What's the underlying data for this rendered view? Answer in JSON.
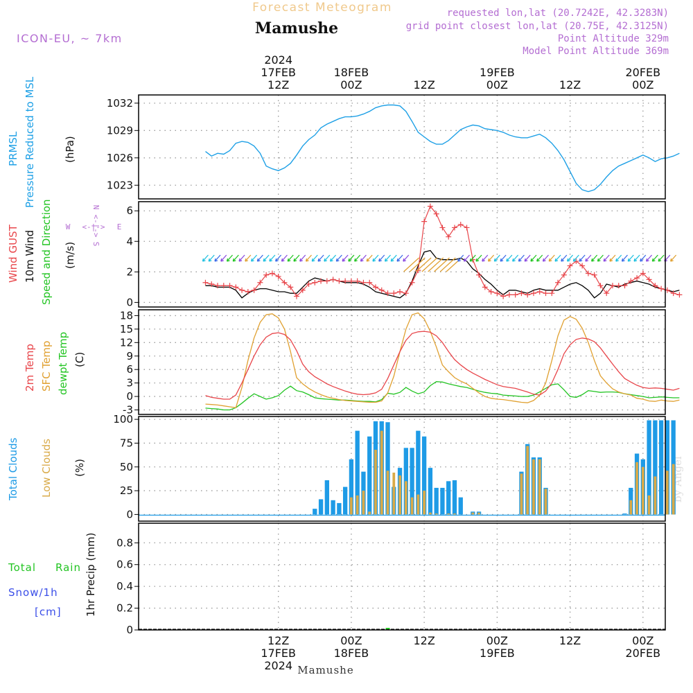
{
  "header": {
    "product_title": "Forecast Meteogram",
    "location": "Mamushe",
    "model": "ICON-EU, ~ 7km",
    "requested": "requested lon,lat (20.7242E, 42.3283N)",
    "gridpoint": "grid point closest lon,lat (20.75E, 42.3125N)",
    "point_altitude": "Point Altitude 329m",
    "model_altitude": "Model Point Altitude 369m"
  },
  "time_axis": {
    "top_labels": [
      {
        "hour": 12,
        "l1": "2024",
        "l2": "17FEB",
        "l3": "12Z"
      },
      {
        "hour": 24,
        "l2": "18FEB",
        "l3": "00Z"
      },
      {
        "hour": 36,
        "l3": "12Z"
      },
      {
        "hour": 48,
        "l2": "19FEB",
        "l3": "00Z"
      },
      {
        "hour": 60,
        "l3": "12Z"
      },
      {
        "hour": 72,
        "l2": "20FEB",
        "l3": "00Z"
      }
    ],
    "bottom_labels": [
      {
        "hour": 12,
        "l1": "12Z",
        "l2": "17FEB",
        "l3": "2024"
      },
      {
        "hour": 24,
        "l1": "00Z",
        "l2": "18FEB"
      },
      {
        "hour": 36,
        "l1": "12Z"
      },
      {
        "hour": 48,
        "l1": "00Z",
        "l2": "19FEB"
      },
      {
        "hour": 60,
        "l1": "12Z"
      },
      {
        "hour": 72,
        "l1": "00Z",
        "l2": "20FEB"
      }
    ],
    "bottom_caption": "Mamushe"
  },
  "panels": {
    "pressure": {
      "labels": [
        "PRMSL",
        "Pressure Reduced to MSL",
        "(hPa)"
      ],
      "yticks": [
        1023,
        1026,
        1029,
        1032
      ]
    },
    "wind": {
      "labels": [
        "Wind GUST",
        "10m Wind",
        "Speed and Direction",
        "(m/s)"
      ],
      "compass": {
        "n": "N",
        "s": "S",
        "w": "W",
        "e": "E",
        "arrow": "<-|->"
      },
      "yticks": [
        0,
        2,
        4,
        6
      ]
    },
    "temp": {
      "labels": [
        "2m Temp",
        "SFC Temp",
        "dewpt Temp",
        "(C)"
      ],
      "yticks": [
        -3,
        0,
        3,
        6,
        9,
        12,
        15,
        18
      ]
    },
    "clouds": {
      "labels": [
        "Total Clouds",
        "Low Clouds",
        "(%)"
      ],
      "yticks": [
        0,
        25,
        50,
        75,
        100
      ],
      "watermark": "by Angel"
    },
    "precip": {
      "labels": [
        "Total",
        "Rain",
        "Snow/1h",
        "[cm]",
        "1hr Precip (mm)"
      ],
      "yticks": [
        0,
        0.2,
        0.4,
        0.6,
        0.8
      ]
    }
  },
  "colors": {
    "pressure": "#1ea0e6",
    "gust": "#e8454a",
    "wind": "#000000",
    "temp2m": "#e8454a",
    "sfc": "#e0a030",
    "dewpt": "#22c422",
    "total_clouds": "#1e9be6",
    "low_clouds": "#d9aa48",
    "purple": "#b46ed2",
    "title_orange": "#f0c98c",
    "snow": "#3a4ee8"
  },
  "chart_data": [
    {
      "type": "line",
      "panel": "pressure",
      "ylabel": "(hPa)",
      "ylim": [
        1021.5,
        1032.9
      ],
      "x_hours": [
        0,
        1,
        2,
        3,
        4,
        5,
        6,
        7,
        8,
        9,
        10,
        11,
        12,
        13,
        14,
        15,
        16,
        17,
        18,
        19,
        20,
        21,
        22,
        23,
        24,
        25,
        26,
        27,
        28,
        29,
        30,
        31,
        32,
        33,
        34,
        35,
        36,
        37,
        38,
        39,
        40,
        41,
        42,
        43,
        44,
        45,
        46,
        47,
        48,
        49,
        50,
        51,
        52,
        53,
        54,
        55,
        56,
        57,
        58,
        59,
        60,
        61,
        62,
        63,
        64,
        65,
        66,
        67,
        68,
        69,
        70,
        71,
        72,
        73,
        74,
        75,
        76,
        77,
        78
      ],
      "series": [
        {
          "name": "PRMSL",
          "values": [
            1026.7,
            1026.2,
            1026.5,
            1026.4,
            1026.8,
            1027.6,
            1027.8,
            1027.7,
            1027.3,
            1026.5,
            1025.1,
            1024.8,
            1024.6,
            1024.9,
            1025.4,
            1026.3,
            1027.3,
            1028.0,
            1028.5,
            1029.3,
            1029.7,
            1030.0,
            1030.3,
            1030.5,
            1030.5,
            1030.6,
            1030.8,
            1031.1,
            1031.5,
            1031.7,
            1031.8,
            1031.8,
            1031.7,
            1031.1,
            1030.0,
            1028.8,
            1028.3,
            1027.8,
            1027.5,
            1027.5,
            1027.9,
            1028.5,
            1029.1,
            1029.4,
            1029.6,
            1029.5,
            1029.2,
            1029.1,
            1029.0,
            1028.8,
            1028.5,
            1028.3,
            1028.2,
            1028.2,
            1028.4,
            1028.6,
            1028.2,
            1027.6,
            1026.8,
            1025.8,
            1024.5,
            1023.2,
            1022.5,
            1022.3,
            1022.5,
            1023.1,
            1023.9,
            1024.6,
            1025.1,
            1025.4,
            1025.7,
            1026.0,
            1026.3,
            1026.0,
            1025.6,
            1025.9,
            1026.0,
            1026.2,
            1026.5
          ]
        }
      ]
    },
    {
      "type": "line",
      "panel": "wind",
      "ylabel": "(m/s)",
      "ylim": [
        -0.3,
        6.6
      ],
      "x_hours": [
        0,
        1,
        2,
        3,
        4,
        5,
        6,
        7,
        8,
        9,
        10,
        11,
        12,
        13,
        14,
        15,
        16,
        17,
        18,
        19,
        20,
        21,
        22,
        23,
        24,
        25,
        26,
        27,
        28,
        29,
        30,
        31,
        32,
        33,
        34,
        35,
        36,
        37,
        38,
        39,
        40,
        41,
        42,
        43,
        44,
        45,
        46,
        47,
        48,
        49,
        50,
        51,
        52,
        53,
        54,
        55,
        56,
        57,
        58,
        59,
        60,
        61,
        62,
        63,
        64,
        65,
        66,
        67,
        68,
        69,
        70,
        71,
        72,
        73,
        74,
        75,
        76,
        77,
        78
      ],
      "series": [
        {
          "name": "Wind GUST",
          "values": [
            1.3,
            1.2,
            1.1,
            1.1,
            1.1,
            1.0,
            0.8,
            0.7,
            0.8,
            1.3,
            1.8,
            1.9,
            1.7,
            1.3,
            1.0,
            0.4,
            0.8,
            1.2,
            1.3,
            1.4,
            1.4,
            1.5,
            1.4,
            1.4,
            1.4,
            1.4,
            1.3,
            1.3,
            1.0,
            0.8,
            0.6,
            0.6,
            0.7,
            0.6,
            1.3,
            2.1,
            5.3,
            6.3,
            5.8,
            4.9,
            4.3,
            4.9,
            5.1,
            4.9,
            2.8,
            1.8,
            1.0,
            0.7,
            0.6,
            0.4,
            0.5,
            0.5,
            0.6,
            0.5,
            0.6,
            0.7,
            0.6,
            0.6,
            1.3,
            1.8,
            2.4,
            2.7,
            2.4,
            1.9,
            1.8,
            1.1,
            0.6,
            1.1,
            1.1,
            1.1,
            1.4,
            1.6,
            1.9,
            1.5,
            1.1,
            0.9,
            0.8,
            0.6,
            0.5
          ]
        },
        {
          "name": "10m Wind",
          "values": [
            1.1,
            1.1,
            1.0,
            1.0,
            1.0,
            0.8,
            0.3,
            0.6,
            0.8,
            0.9,
            0.9,
            0.8,
            0.7,
            0.7,
            0.6,
            0.6,
            1.0,
            1.4,
            1.6,
            1.5,
            1.4,
            1.5,
            1.4,
            1.3,
            1.3,
            1.3,
            1.2,
            1.0,
            0.7,
            0.6,
            0.5,
            0.4,
            0.3,
            0.6,
            1.4,
            2.4,
            3.3,
            3.4,
            2.9,
            2.8,
            2.8,
            2.8,
            2.9,
            2.7,
            2.2,
            1.9,
            1.5,
            1.2,
            0.8,
            0.5,
            0.8,
            0.8,
            0.7,
            0.6,
            0.8,
            0.9,
            0.8,
            0.8,
            0.8,
            1.0,
            1.2,
            1.3,
            1.1,
            0.8,
            0.3,
            0.6,
            1.2,
            1.1,
            1.0,
            1.2,
            1.3,
            1.4,
            1.3,
            1.2,
            1.0,
            0.9,
            0.8,
            0.7,
            0.8
          ]
        }
      ]
    },
    {
      "type": "line",
      "panel": "temp",
      "ylabel": "(C)",
      "ylim": [
        -4,
        19.3
      ],
      "x_hours": [
        0,
        1,
        2,
        3,
        4,
        5,
        6,
        7,
        8,
        9,
        10,
        11,
        12,
        13,
        14,
        15,
        16,
        17,
        18,
        19,
        20,
        21,
        22,
        23,
        24,
        25,
        26,
        27,
        28,
        29,
        30,
        31,
        32,
        33,
        34,
        35,
        36,
        37,
        38,
        39,
        40,
        41,
        42,
        43,
        44,
        45,
        46,
        47,
        48,
        49,
        50,
        51,
        52,
        53,
        54,
        55,
        56,
        57,
        58,
        59,
        60,
        61,
        62,
        63,
        64,
        65,
        66,
        67,
        68,
        69,
        70,
        71,
        72,
        73,
        74,
        75,
        76,
        77,
        78
      ],
      "series": [
        {
          "name": "2m Temp",
          "values": [
            0.2,
            -0.2,
            -0.4,
            -0.6,
            -0.6,
            0.3,
            3.0,
            6.0,
            9.0,
            11.5,
            13.2,
            14.0,
            14.2,
            13.8,
            12.6,
            10.2,
            7.2,
            5.5,
            4.4,
            3.6,
            2.8,
            2.2,
            1.7,
            1.2,
            0.8,
            0.5,
            0.4,
            0.5,
            0.8,
            1.6,
            4.0,
            7.0,
            10.0,
            12.5,
            14.0,
            14.4,
            14.5,
            14.3,
            13.5,
            12.0,
            10.0,
            8.2,
            7.0,
            6.0,
            5.2,
            4.5,
            3.8,
            3.2,
            2.6,
            2.2,
            2.0,
            1.8,
            1.4,
            1.0,
            0.5,
            0.3,
            1.2,
            3.0,
            6.0,
            9.5,
            11.5,
            12.7,
            13.0,
            12.8,
            12.2,
            10.8,
            9.0,
            7.2,
            5.5,
            4.0,
            3.2,
            2.5,
            2.0,
            1.8,
            1.9,
            1.8,
            1.6,
            1.4,
            1.8
          ]
        },
        {
          "name": "SFC Temp",
          "values": [
            -1.7,
            -1.8,
            -1.9,
            -2.1,
            -2.3,
            -2.5,
            2.0,
            8.0,
            13.0,
            16.5,
            18.2,
            18.4,
            17.5,
            15.0,
            10.0,
            4.2,
            2.8,
            1.8,
            1.0,
            0.4,
            -0.1,
            -0.4,
            -0.7,
            -0.9,
            -1.0,
            -1.1,
            -1.2,
            -1.3,
            -1.3,
            -1.0,
            0.8,
            4.5,
            10.0,
            15.0,
            18.2,
            18.6,
            17.3,
            14.5,
            11.0,
            7.0,
            5.5,
            4.2,
            3.4,
            2.8,
            1.8,
            0.8,
            0.0,
            -0.4,
            -0.6,
            -0.7,
            -0.9,
            -1.1,
            -1.3,
            -1.4,
            -0.9,
            0.3,
            3.0,
            8.0,
            13.5,
            17.0,
            17.8,
            17.2,
            15.2,
            12.0,
            8.0,
            4.6,
            3.0,
            1.7,
            1.0,
            0.6,
            0.3,
            -0.4,
            -0.6,
            -1.0,
            -1.1,
            -0.8,
            -1.0,
            -1.1,
            -0.8
          ]
        },
        {
          "name": "dewpt Temp",
          "values": [
            -2.6,
            -2.7,
            -2.8,
            -3.0,
            -3.0,
            -2.5,
            -1.5,
            -0.4,
            0.6,
            0.0,
            -0.6,
            -0.3,
            0.2,
            1.4,
            2.3,
            1.3,
            1.0,
            0.4,
            -0.3,
            -0.5,
            -0.6,
            -0.7,
            -0.8,
            -0.8,
            -0.9,
            -1.0,
            -1.1,
            -1.1,
            -1.2,
            -0.7,
            0.7,
            0.5,
            0.9,
            2.0,
            1.2,
            0.6,
            1.0,
            2.4,
            3.3,
            3.2,
            2.8,
            2.5,
            2.2,
            2.0,
            1.6,
            1.2,
            0.9,
            0.7,
            0.6,
            0.3,
            0.2,
            0.1,
            0.0,
            0.0,
            0.3,
            1.0,
            1.8,
            2.6,
            2.8,
            1.5,
            0.0,
            -0.2,
            0.4,
            1.3,
            1.1,
            0.9,
            1.0,
            1.0,
            0.9,
            0.6,
            0.4,
            0.2,
            0.0,
            -0.3,
            -0.2,
            -0.1,
            -0.2,
            -0.3,
            -0.3
          ]
        }
      ]
    },
    {
      "type": "bar",
      "panel": "clouds",
      "ylabel": "(%)",
      "ylim": [
        -7,
        103
      ],
      "x_hours": [
        0,
        1,
        2,
        3,
        4,
        5,
        6,
        7,
        8,
        9,
        10,
        11,
        12,
        13,
        14,
        15,
        16,
        17,
        18,
        19,
        20,
        21,
        22,
        23,
        24,
        25,
        26,
        27,
        28,
        29,
        30,
        31,
        32,
        33,
        34,
        35,
        36,
        37,
        38,
        39,
        40,
        41,
        42,
        43,
        44,
        45,
        46,
        47,
        48,
        49,
        50,
        51,
        52,
        53,
        54,
        55,
        56,
        57,
        58,
        59,
        60,
        61,
        62,
        63,
        64,
        65,
        66,
        67,
        68,
        69,
        70,
        71,
        72,
        73,
        74,
        75,
        76,
        77
      ],
      "series": [
        {
          "name": "Total Clouds",
          "values": [
            0,
            0,
            0,
            0,
            0,
            0,
            0,
            0,
            0,
            0,
            0,
            0,
            0,
            0,
            0,
            0,
            0,
            0,
            6,
            16,
            36,
            15,
            12,
            29,
            58,
            88,
            45,
            82,
            98,
            98,
            97,
            29,
            49,
            70,
            70,
            88,
            82,
            49,
            28,
            28,
            35,
            36,
            18,
            0,
            3,
            3,
            0,
            0,
            0,
            0,
            0,
            0,
            45,
            74,
            60,
            60,
            28,
            0,
            0,
            0,
            0,
            0,
            0,
            0,
            0,
            0,
            0,
            0,
            0,
            1,
            28,
            64,
            58,
            99,
            99,
            99,
            99,
            99
          ]
        },
        {
          "name": "Low Clouds",
          "values": [
            0,
            0,
            0,
            0,
            0,
            0,
            0,
            0,
            0,
            0,
            0,
            0,
            0,
            0,
            0,
            0,
            0,
            0,
            0,
            0,
            0,
            0,
            0,
            0,
            18,
            20,
            25,
            3,
            68,
            88,
            46,
            44,
            41,
            35,
            18,
            21,
            25,
            2,
            1,
            0,
            1,
            1,
            0,
            0,
            2,
            2,
            0,
            0,
            0,
            0,
            0,
            0,
            43,
            72,
            58,
            58,
            27,
            0,
            0,
            0,
            0,
            0,
            0,
            0,
            0,
            0,
            0,
            0,
            0,
            0,
            15,
            55,
            50,
            20,
            40,
            0,
            46,
            53
          ]
        }
      ]
    },
    {
      "type": "bar",
      "panel": "precip",
      "ylabel": "1hr Precip (mm)",
      "ylim": [
        0,
        0.98
      ],
      "series": [
        {
          "name": "Total Rain",
          "values": [
            0
          ]
        },
        {
          "name": "Snow/1h",
          "values": [
            0
          ]
        }
      ]
    }
  ]
}
